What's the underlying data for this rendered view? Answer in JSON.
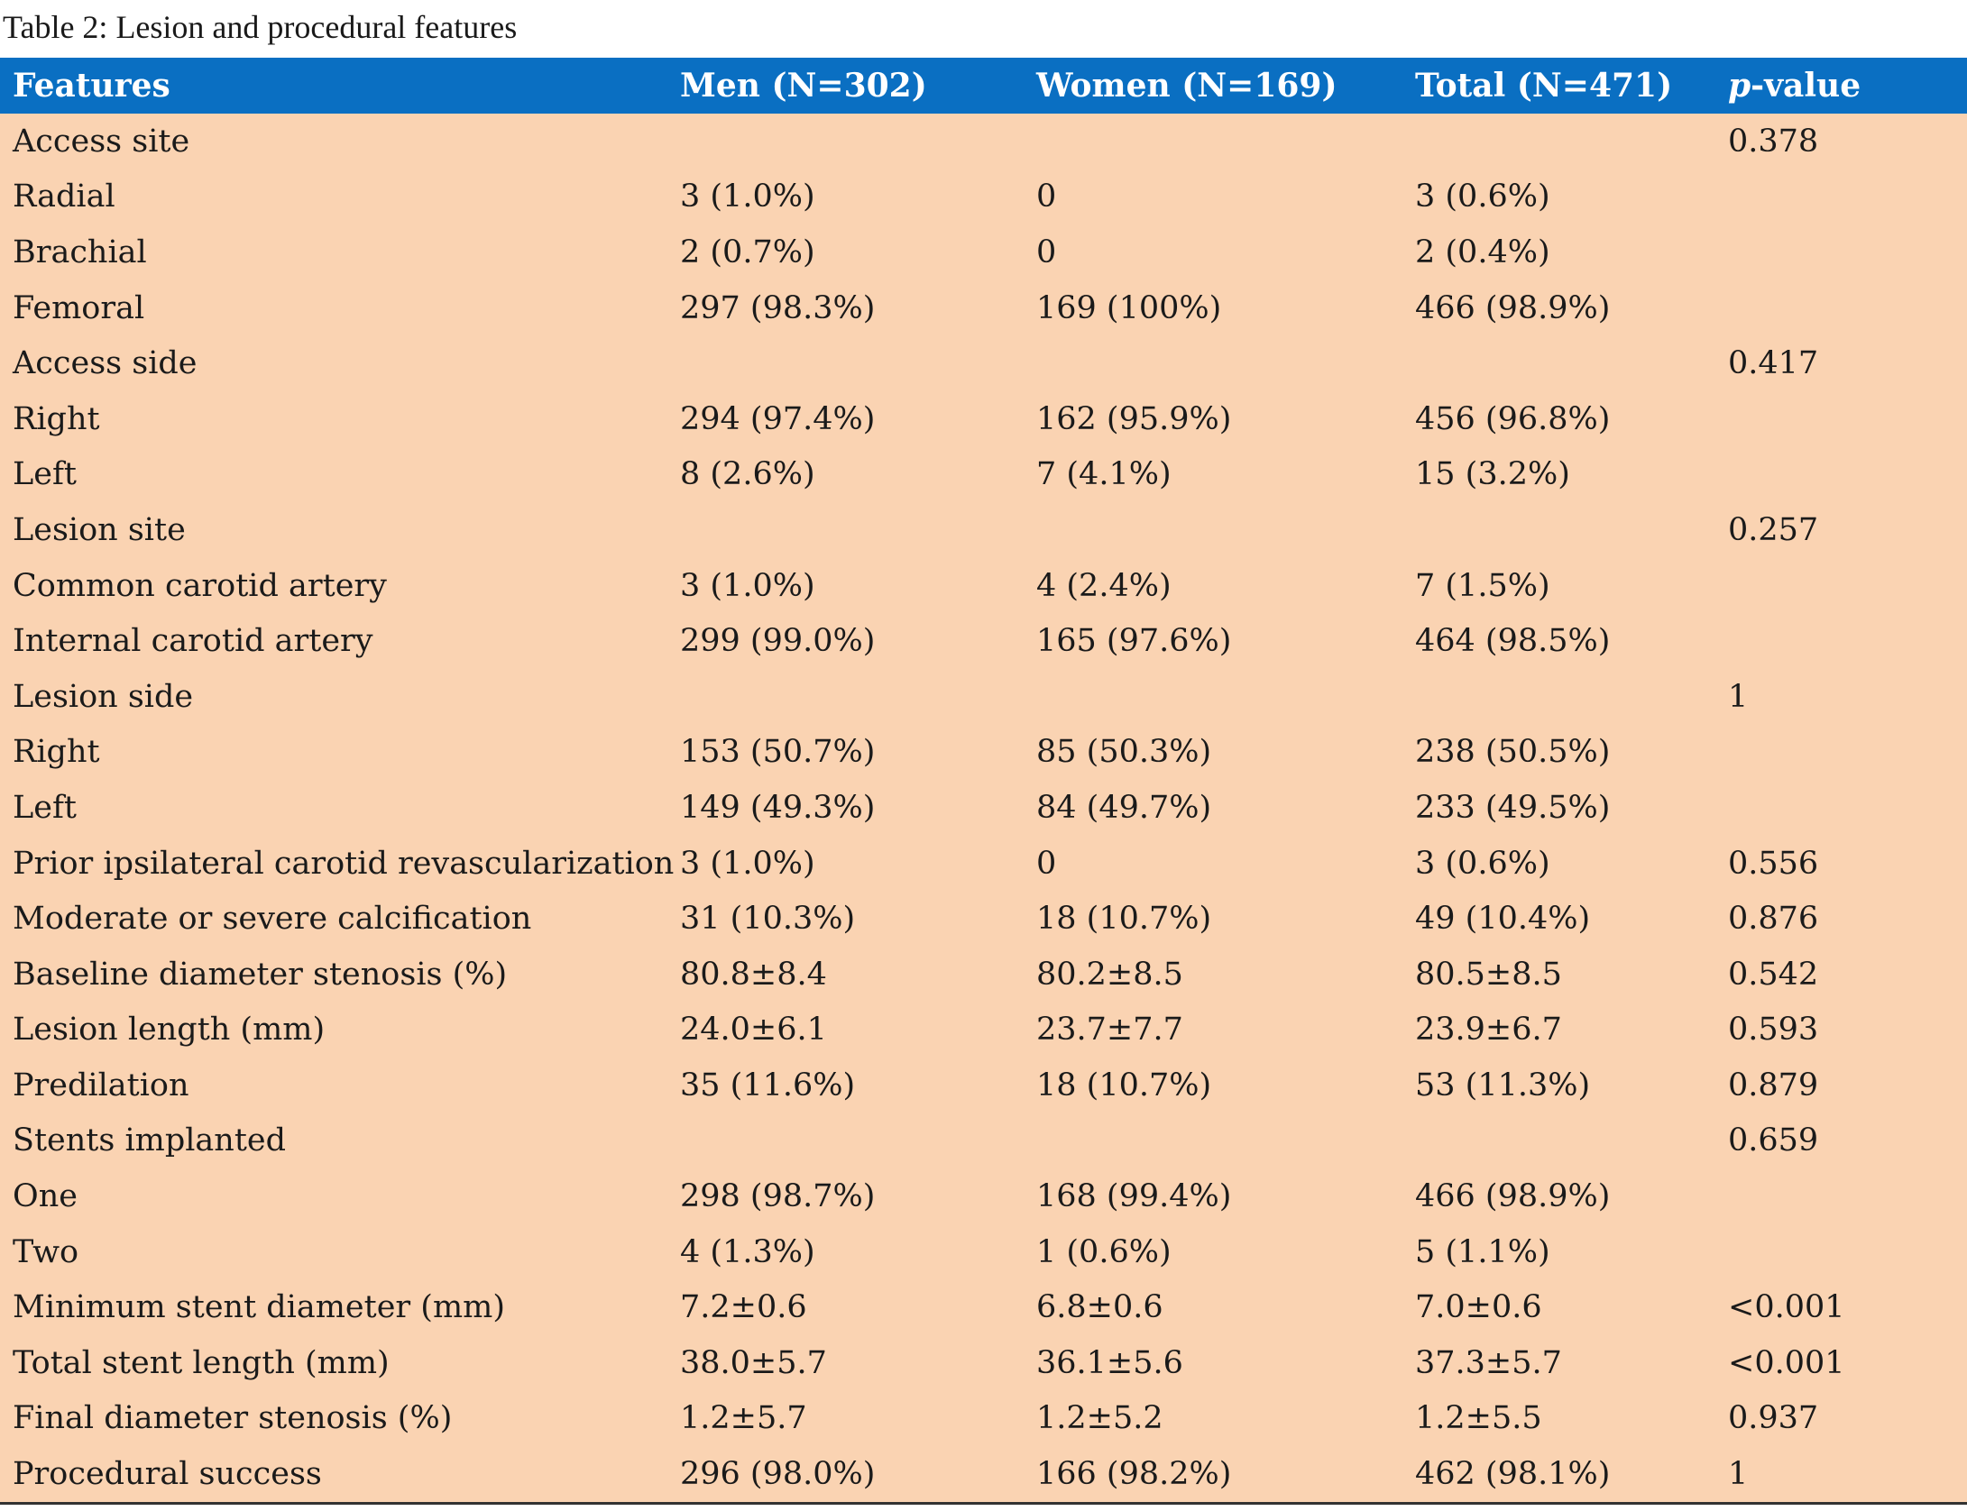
{
  "caption": "Table 2: Lesion and procedural features",
  "header": {
    "features": "Features",
    "men": "Men (N=302)",
    "women": "Women (N=169)",
    "total": "Total (N=471)",
    "p_prefix": "p",
    "p_suffix": "-value"
  },
  "rows": [
    [
      "Access site",
      "",
      "",
      "",
      "0.378"
    ],
    [
      "Radial",
      "3 (1.0%)",
      "0",
      "3 (0.6%)",
      ""
    ],
    [
      "Brachial",
      "2 (0.7%)",
      "0",
      "2 (0.4%)",
      ""
    ],
    [
      "Femoral",
      "297 (98.3%)",
      "169 (100%)",
      "466 (98.9%)",
      ""
    ],
    [
      "Access side",
      "",
      "",
      "",
      "0.417"
    ],
    [
      "Right",
      "294 (97.4%)",
      "162 (95.9%)",
      "456 (96.8%)",
      ""
    ],
    [
      "Left",
      "8 (2.6%)",
      "7 (4.1%)",
      "15 (3.2%)",
      ""
    ],
    [
      "Lesion site",
      "",
      "",
      "",
      "0.257"
    ],
    [
      "Common carotid artery",
      "3 (1.0%)",
      "4 (2.4%)",
      "7 (1.5%)",
      ""
    ],
    [
      "Internal carotid artery",
      "299 (99.0%)",
      "165 (97.6%)",
      "464 (98.5%)",
      ""
    ],
    [
      "Lesion side",
      "",
      "",
      "",
      "1"
    ],
    [
      "Right",
      "153 (50.7%)",
      "85 (50.3%)",
      "238 (50.5%)",
      ""
    ],
    [
      "Left",
      "149 (49.3%)",
      "84 (49.7%)",
      "233 (49.5%)",
      ""
    ],
    [
      "Prior ipsilateral carotid revascularization",
      "3 (1.0%)",
      "0",
      "3 (0.6%)",
      "0.556"
    ],
    [
      "Moderate or severe calcification",
      "31 (10.3%)",
      "18 (10.7%)",
      "49 (10.4%)",
      "0.876"
    ],
    [
      "Baseline diameter stenosis (%)",
      "80.8±8.4",
      "80.2±8.5",
      "80.5±8.5",
      "0.542"
    ],
    [
      "Lesion length (mm)",
      "24.0±6.1",
      "23.7±7.7",
      "23.9±6.7",
      "0.593"
    ],
    [
      "Predilation",
      "35 (11.6%)",
      "18 (10.7%)",
      "53 (11.3%)",
      "0.879"
    ],
    [
      "Stents implanted",
      "",
      "",
      "",
      "0.659"
    ],
    [
      "One",
      "298 (98.7%)",
      "168 (99.4%)",
      "466 (98.9%)",
      ""
    ],
    [
      "Two",
      "4 (1.3%)",
      "1 (0.6%)",
      "5 (1.1%)",
      ""
    ],
    [
      "Minimum stent diameter (mm)",
      "7.2±0.6",
      "6.8±0.6",
      "7.0±0.6",
      "<0.001"
    ],
    [
      "Total stent length (mm)",
      "38.0±5.7",
      "36.1±5.6",
      "37.3±5.7",
      "<0.001"
    ],
    [
      "Final diameter stenosis (%)",
      "1.2±5.7",
      "1.2±5.2",
      "1.2±5.5",
      "0.937"
    ],
    [
      "Procedural success",
      "296 (98.0%)",
      "166 (98.2%)",
      "462 (98.1%)",
      "1"
    ]
  ]
}
